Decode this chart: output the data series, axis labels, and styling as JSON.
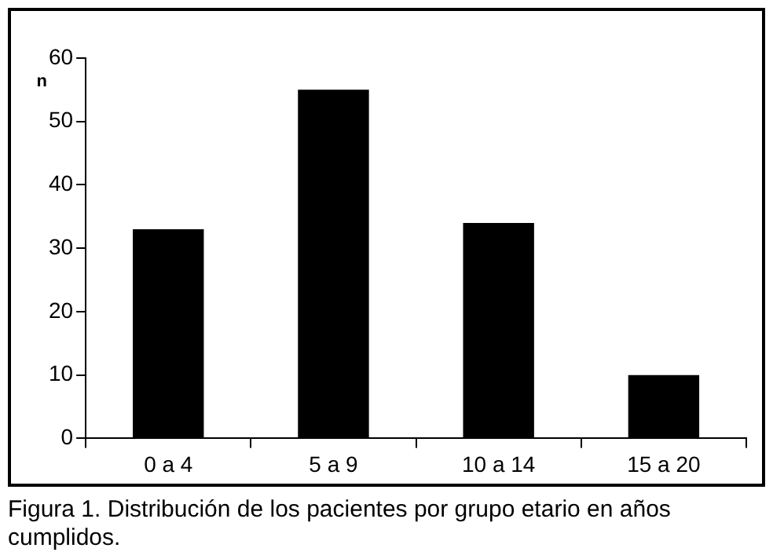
{
  "chart_data": {
    "type": "bar",
    "ylabel": "n",
    "categories": [
      "0 a 4",
      "5 a 9",
      "10 a 14",
      "15 a 20"
    ],
    "values": [
      33,
      55,
      34,
      10
    ],
    "color": "#000000",
    "ylim": [
      0,
      60
    ],
    "yticks": [
      0,
      10,
      20,
      30,
      40,
      50,
      60
    ],
    "grid": false,
    "legend": false,
    "annotations": [
      "Figura 1.  Distribución de los pacientes por grupo etario en años cumplidos."
    ]
  }
}
